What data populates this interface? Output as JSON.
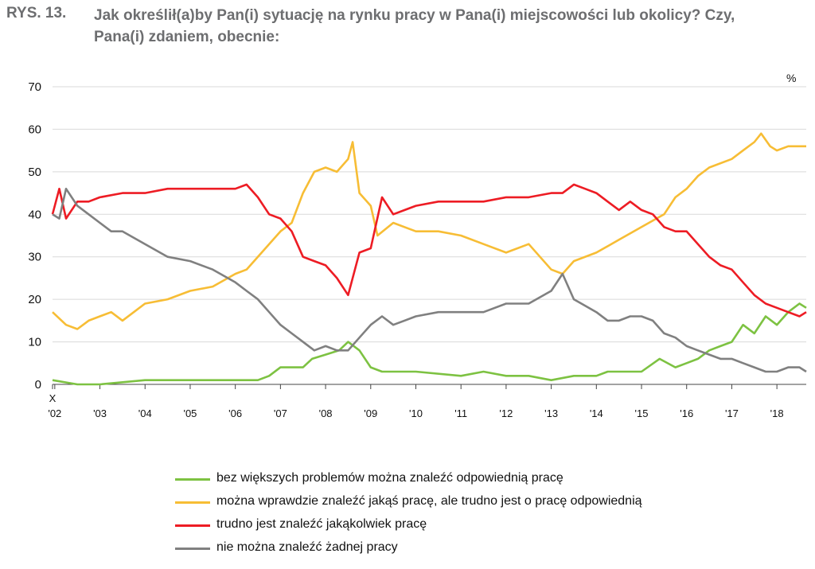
{
  "figure": {
    "label": "RYS. 13.",
    "title": "Jak określił(a)by Pan(i) sytuację na rynku pracy w Pana(i) miejscowości lub okolicy? Czy, Pana(i) zdaniem, obecnie:"
  },
  "chart_data": {
    "type": "line",
    "unit": "%",
    "ylim": [
      0,
      70
    ],
    "yticks": [
      "0",
      "10",
      "20",
      "30",
      "40",
      "50",
      "60",
      "70"
    ],
    "x_start_label": "X",
    "x_tick_labels": [
      "'02",
      "'03",
      "'04",
      "'05",
      "'06",
      "'07",
      "'08",
      "'09",
      "'10",
      "'11",
      "'12",
      "'13",
      "'14",
      "'15",
      "'16",
      "'17",
      "'18"
    ],
    "x_range": [
      2001.95,
      2018.65
    ],
    "grid": "horizontal",
    "legend_position": "bottom",
    "series": [
      {
        "name": "bez większych problemów można znaleźć odpowiednią pracę",
        "color": "#7dc242",
        "points": [
          [
            2001.95,
            1
          ],
          [
            2002.5,
            0
          ],
          [
            2003,
            0
          ],
          [
            2004,
            1
          ],
          [
            2005,
            1
          ],
          [
            2006,
            1
          ],
          [
            2006.5,
            1
          ],
          [
            2006.75,
            2
          ],
          [
            2007,
            4
          ],
          [
            2007.5,
            4
          ],
          [
            2007.7,
            6
          ],
          [
            2008,
            7
          ],
          [
            2008.3,
            8
          ],
          [
            2008.5,
            10
          ],
          [
            2008.75,
            8
          ],
          [
            2009,
            4
          ],
          [
            2009.25,
            3
          ],
          [
            2010,
            3
          ],
          [
            2011,
            2
          ],
          [
            2011.5,
            3
          ],
          [
            2012,
            2
          ],
          [
            2012.5,
            2
          ],
          [
            2013,
            1
          ],
          [
            2013.5,
            2
          ],
          [
            2014,
            2
          ],
          [
            2014.25,
            3
          ],
          [
            2014.75,
            3
          ],
          [
            2015,
            3
          ],
          [
            2015.4,
            6
          ],
          [
            2015.75,
            4
          ],
          [
            2016,
            5
          ],
          [
            2016.25,
            6
          ],
          [
            2016.5,
            8
          ],
          [
            2016.75,
            9
          ],
          [
            2017,
            10
          ],
          [
            2017.25,
            14
          ],
          [
            2017.5,
            12
          ],
          [
            2017.75,
            16
          ],
          [
            2018,
            14
          ],
          [
            2018.25,
            17
          ],
          [
            2018.5,
            19
          ],
          [
            2018.65,
            18
          ]
        ]
      },
      {
        "name": "można wprawdzie znaleźć jakąś pracę, ale trudno jest o pracę odpowiednią",
        "color": "#f7bd35",
        "points": [
          [
            2001.95,
            17
          ],
          [
            2002.25,
            14
          ],
          [
            2002.5,
            13
          ],
          [
            2002.75,
            15
          ],
          [
            2003,
            16
          ],
          [
            2003.25,
            17
          ],
          [
            2003.5,
            15
          ],
          [
            2003.75,
            17
          ],
          [
            2004,
            19
          ],
          [
            2004.5,
            20
          ],
          [
            2005,
            22
          ],
          [
            2005.5,
            23
          ],
          [
            2006,
            26
          ],
          [
            2006.25,
            27
          ],
          [
            2006.5,
            30
          ],
          [
            2006.75,
            33
          ],
          [
            2007,
            36
          ],
          [
            2007.25,
            38
          ],
          [
            2007.5,
            45
          ],
          [
            2007.75,
            50
          ],
          [
            2008,
            51
          ],
          [
            2008.25,
            50
          ],
          [
            2008.5,
            53
          ],
          [
            2008.6,
            57
          ],
          [
            2008.75,
            45
          ],
          [
            2009,
            42
          ],
          [
            2009.15,
            35
          ],
          [
            2009.5,
            38
          ],
          [
            2010,
            36
          ],
          [
            2010.5,
            36
          ],
          [
            2011,
            35
          ],
          [
            2011.5,
            33
          ],
          [
            2012,
            31
          ],
          [
            2012.5,
            33
          ],
          [
            2013,
            27
          ],
          [
            2013.25,
            26
          ],
          [
            2013.5,
            29
          ],
          [
            2014,
            31
          ],
          [
            2014.5,
            34
          ],
          [
            2015,
            37
          ],
          [
            2015.5,
            40
          ],
          [
            2015.75,
            44
          ],
          [
            2016,
            46
          ],
          [
            2016.25,
            49
          ],
          [
            2016.5,
            51
          ],
          [
            2017,
            53
          ],
          [
            2017.25,
            55
          ],
          [
            2017.5,
            57
          ],
          [
            2017.65,
            59
          ],
          [
            2017.85,
            56
          ],
          [
            2018,
            55
          ],
          [
            2018.25,
            56
          ],
          [
            2018.5,
            56
          ],
          [
            2018.65,
            56
          ]
        ]
      },
      {
        "name": "trudno jest znaleźć jakąkolwiek pracę",
        "color": "#ed1c24",
        "points": [
          [
            2001.95,
            40
          ],
          [
            2002.1,
            46
          ],
          [
            2002.25,
            39
          ],
          [
            2002.5,
            43
          ],
          [
            2002.75,
            43
          ],
          [
            2003,
            44
          ],
          [
            2003.5,
            45
          ],
          [
            2004,
            45
          ],
          [
            2004.5,
            46
          ],
          [
            2005,
            46
          ],
          [
            2005.5,
            46
          ],
          [
            2006,
            46
          ],
          [
            2006.25,
            47
          ],
          [
            2006.5,
            44
          ],
          [
            2006.75,
            40
          ],
          [
            2007,
            39
          ],
          [
            2007.25,
            36
          ],
          [
            2007.5,
            30
          ],
          [
            2007.75,
            29
          ],
          [
            2008,
            28
          ],
          [
            2008.25,
            25
          ],
          [
            2008.5,
            21
          ],
          [
            2008.75,
            31
          ],
          [
            2009,
            32
          ],
          [
            2009.25,
            44
          ],
          [
            2009.5,
            40
          ],
          [
            2010,
            42
          ],
          [
            2010.5,
            43
          ],
          [
            2011,
            43
          ],
          [
            2011.5,
            43
          ],
          [
            2012,
            44
          ],
          [
            2012.5,
            44
          ],
          [
            2013,
            45
          ],
          [
            2013.25,
            45
          ],
          [
            2013.5,
            47
          ],
          [
            2013.75,
            46
          ],
          [
            2014,
            45
          ],
          [
            2014.25,
            43
          ],
          [
            2014.5,
            41
          ],
          [
            2014.75,
            43
          ],
          [
            2015,
            41
          ],
          [
            2015.25,
            40
          ],
          [
            2015.5,
            37
          ],
          [
            2015.75,
            36
          ],
          [
            2016,
            36
          ],
          [
            2016.25,
            33
          ],
          [
            2016.5,
            30
          ],
          [
            2016.75,
            28
          ],
          [
            2017,
            27
          ],
          [
            2017.25,
            24
          ],
          [
            2017.5,
            21
          ],
          [
            2017.75,
            19
          ],
          [
            2018,
            18
          ],
          [
            2018.25,
            17
          ],
          [
            2018.5,
            16
          ],
          [
            2018.65,
            17
          ]
        ]
      },
      {
        "name": "nie można znaleźć żadnej pracy",
        "color": "#808080",
        "points": [
          [
            2001.95,
            40
          ],
          [
            2002.1,
            39
          ],
          [
            2002.25,
            46
          ],
          [
            2002.5,
            42
          ],
          [
            2002.75,
            40
          ],
          [
            2003,
            38
          ],
          [
            2003.25,
            36
          ],
          [
            2003.5,
            36
          ],
          [
            2004,
            33
          ],
          [
            2004.5,
            30
          ],
          [
            2005,
            29
          ],
          [
            2005.5,
            27
          ],
          [
            2006,
            24
          ],
          [
            2006.25,
            22
          ],
          [
            2006.5,
            20
          ],
          [
            2006.75,
            17
          ],
          [
            2007,
            14
          ],
          [
            2007.25,
            12
          ],
          [
            2007.5,
            10
          ],
          [
            2007.75,
            8
          ],
          [
            2008,
            9
          ],
          [
            2008.25,
            8
          ],
          [
            2008.5,
            8
          ],
          [
            2008.75,
            11
          ],
          [
            2009,
            14
          ],
          [
            2009.25,
            16
          ],
          [
            2009.5,
            14
          ],
          [
            2010,
            16
          ],
          [
            2010.5,
            17
          ],
          [
            2011,
            17
          ],
          [
            2011.5,
            17
          ],
          [
            2012,
            19
          ],
          [
            2012.5,
            19
          ],
          [
            2013,
            22
          ],
          [
            2013.25,
            26
          ],
          [
            2013.5,
            20
          ],
          [
            2014,
            17
          ],
          [
            2014.25,
            15
          ],
          [
            2014.5,
            15
          ],
          [
            2014.75,
            16
          ],
          [
            2015,
            16
          ],
          [
            2015.25,
            15
          ],
          [
            2015.5,
            12
          ],
          [
            2015.75,
            11
          ],
          [
            2016,
            9
          ],
          [
            2016.25,
            8
          ],
          [
            2016.5,
            7
          ],
          [
            2016.75,
            6
          ],
          [
            2017,
            6
          ],
          [
            2017.25,
            5
          ],
          [
            2017.5,
            4
          ],
          [
            2017.75,
            3
          ],
          [
            2018,
            3
          ],
          [
            2018.25,
            4
          ],
          [
            2018.5,
            4
          ],
          [
            2018.65,
            3
          ]
        ]
      }
    ]
  }
}
